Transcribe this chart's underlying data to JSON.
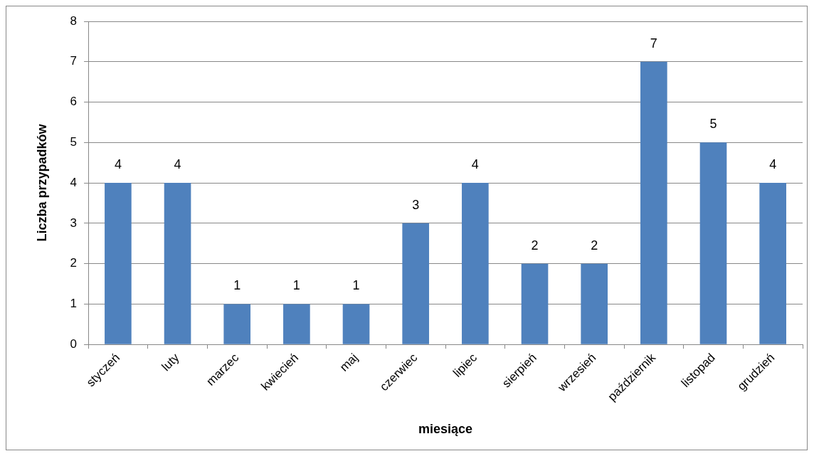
{
  "chart_data": {
    "type": "bar",
    "xlabel": "miesiące",
    "ylabel": "Liczba przypadków",
    "categories": [
      "styczeń",
      "luty",
      "marzec",
      "kwiecień",
      "maj",
      "czerwiec",
      "lipiec",
      "sierpień",
      "wrzesień",
      "październik",
      "listopad",
      "grudzień"
    ],
    "values": [
      4,
      4,
      1,
      1,
      1,
      3,
      4,
      2,
      2,
      7,
      5,
      4
    ],
    "color": "#4f81bd",
    "ylim": [
      0,
      8
    ],
    "yticks": [
      0,
      1,
      2,
      3,
      4,
      5,
      6,
      7,
      8
    ],
    "grid": "y",
    "legend": false,
    "data_labels": true
  }
}
